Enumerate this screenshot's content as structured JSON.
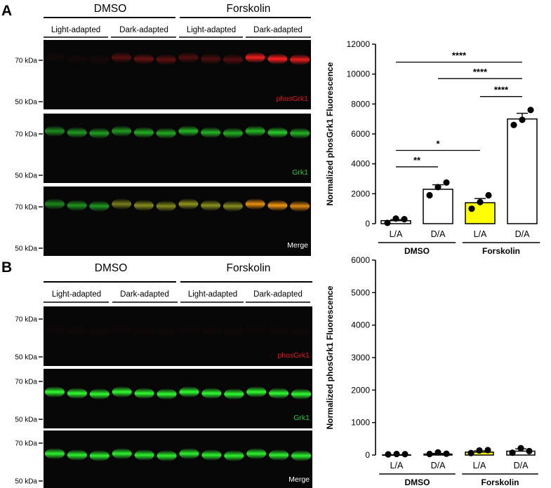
{
  "panels": [
    {
      "letter": "A",
      "groups": [
        "DMSO",
        "Forskolin"
      ],
      "conditions": [
        "Light-adapted",
        "Dark-adapted",
        "Light-adapted",
        "Dark-adapted"
      ],
      "markers": [
        "70 kDa",
        "50 kDa"
      ],
      "blots": [
        {
          "label": "phosGrk1",
          "label_color": "#e8101a",
          "type": "red"
        },
        {
          "label": "Grk1",
          "label_color": "#22c83a",
          "type": "green"
        },
        {
          "label": "Merge",
          "label_color": "#ffffff",
          "type": "merge"
        }
      ],
      "red_intensity": [
        0.05,
        0.05,
        0.06,
        0.32,
        0.38,
        0.35,
        0.3,
        0.28,
        0.3,
        0.95,
        1.0,
        0.9
      ],
      "green_intensity": [
        0.55,
        0.6,
        0.62,
        0.6,
        0.68,
        0.66,
        0.72,
        0.7,
        0.68,
        0.72,
        0.8,
        0.7
      ]
    },
    {
      "letter": "B",
      "groups": [
        "DMSO",
        "Forskolin"
      ],
      "conditions": [
        "Light-adapted",
        "Dark-adapted",
        "Light-adapted",
        "Dark-adapted"
      ],
      "markers": [
        "70 kDa",
        "50 kDa"
      ],
      "blots": [
        {
          "label": "phosGrk1",
          "label_color": "#e8101a",
          "type": "red"
        },
        {
          "label": "Grk1",
          "label_color": "#22c83a",
          "type": "green"
        },
        {
          "label": "Merge",
          "label_color": "#ffffff",
          "type": "merge"
        }
      ],
      "red_intensity": [
        0.03,
        0.03,
        0.03,
        0.03,
        0.03,
        0.03,
        0.03,
        0.03,
        0.03,
        0.03,
        0.03,
        0.03
      ],
      "green_intensity": [
        1.0,
        1.0,
        1.0,
        1.0,
        1.0,
        1.0,
        1.0,
        1.0,
        1.0,
        1.0,
        1.0,
        1.0
      ]
    }
  ],
  "chart_data": [
    {
      "type": "bar",
      "panel": "A",
      "ylabel": "Normalized phosGrk1 Fluorescence",
      "ylim": [
        0,
        12000
      ],
      "yticks": [
        0,
        2000,
        4000,
        6000,
        8000,
        10000,
        12000
      ],
      "categories": [
        "L/A",
        "D/A",
        "L/A",
        "D/A"
      ],
      "groups": [
        {
          "name": "DMSO",
          "categories": [
            0,
            1
          ]
        },
        {
          "name": "Forskolin",
          "categories": [
            2,
            3
          ]
        }
      ],
      "values": [
        200,
        2300,
        1400,
        7000
      ],
      "errors": [
        70,
        300,
        280,
        380
      ],
      "points": [
        [
          50,
          200,
          300
        ],
        [
          1900,
          2300,
          2750
        ],
        [
          1000,
          1300,
          1900
        ],
        [
          6600,
          6800,
          7600
        ]
      ],
      "bar_colors": [
        "#ffffff",
        "#ffffff",
        "#ffff00",
        "#ffffff"
      ],
      "significance": [
        {
          "from": 0,
          "to": 1,
          "y": 3800,
          "label": "**"
        },
        {
          "from": 0,
          "to": 2,
          "y": 4900,
          "label": "*"
        },
        {
          "from": 2,
          "to": 3,
          "y": 8500,
          "label": "****"
        },
        {
          "from": 1,
          "to": 3,
          "y": 9700,
          "label": "****"
        },
        {
          "from": 0,
          "to": 3,
          "y": 10800,
          "label": "****"
        }
      ]
    },
    {
      "type": "bar",
      "panel": "B",
      "ylabel": "Normalized phosGrk1 Fluorescence",
      "ylim": [
        0,
        6000
      ],
      "yticks": [
        0,
        1000,
        2000,
        3000,
        4000,
        5000,
        6000
      ],
      "categories": [
        "L/A",
        "D/A",
        "L/A",
        "D/A"
      ],
      "groups": [
        {
          "name": "DMSO",
          "categories": [
            0,
            1
          ]
        },
        {
          "name": "Forskolin",
          "categories": [
            2,
            3
          ]
        }
      ],
      "values": [
        5,
        30,
        90,
        120
      ],
      "errors": [
        5,
        20,
        40,
        70
      ],
      "points": [
        [
          0,
          10,
          5
        ],
        [
          10,
          60,
          20
        ],
        [
          40,
          120,
          130
        ],
        [
          50,
          190,
          100
        ]
      ],
      "bar_colors": [
        "#ffffff",
        "#ffffff",
        "#ffff00",
        "#ffffff"
      ],
      "significance": []
    }
  ]
}
